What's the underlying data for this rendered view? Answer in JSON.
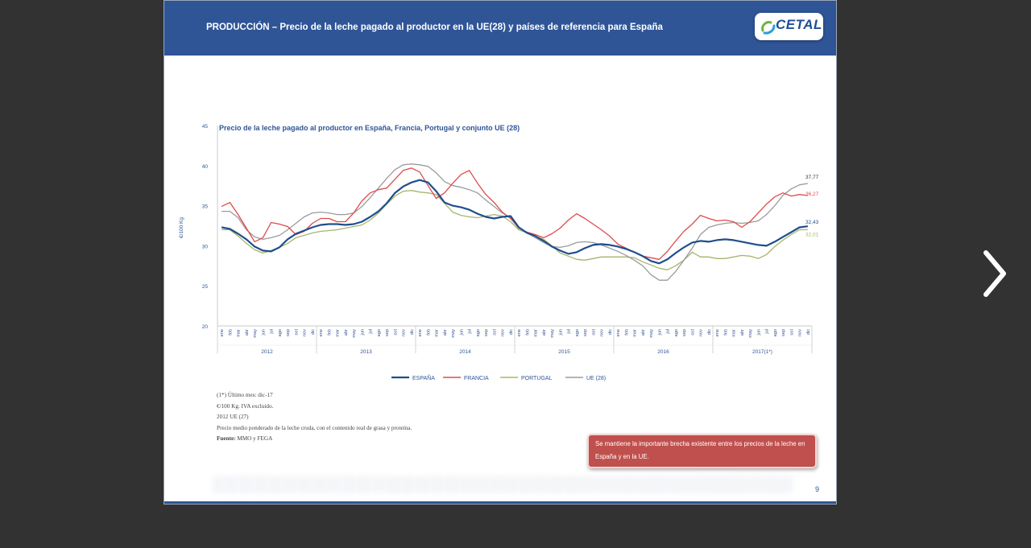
{
  "slide": {
    "title": "PRODUCCIÓN – Precio de la leche pagado al productor en la UE(28) y países de referencia para España",
    "logo_text": "CETAL",
    "page_number": "9"
  },
  "notes": {
    "line1": "(1*) Último mes: dic-17",
    "line2": "€/100 Kg. IVA excluido.",
    "line3": "2012 UE (27)",
    "line4": "Precio medio ponderado de la leche cruda, con el contenido real de grasa y proteína.",
    "source_label": "Fuente:",
    "source_value": " MMO y FEGA"
  },
  "callout": {
    "text": "Se mantiene la importante brecha existente entre los precios de la leche en España y en la UE."
  },
  "navigation": {
    "next_icon": "chevron-right-icon"
  },
  "chart_data": {
    "type": "line",
    "title": "Precio de la leche pagado al productor en España,  Francia, Portugal y conjunto  UE (28)",
    "ylabel": "€/100 Kg",
    "xlabel": "",
    "ylim": [
      20,
      45
    ],
    "yticks": [
      20,
      25,
      30,
      35,
      40,
      45
    ],
    "grid": false,
    "legend_position": "bottom",
    "month_labels": [
      "ene",
      "feb",
      "mar",
      "abr",
      "may",
      "jun",
      "jul",
      "ago",
      "sep",
      "oct",
      "nov",
      "dic"
    ],
    "year_labels": [
      "2012",
      "2013",
      "2014",
      "2015",
      "2016",
      "2017(1*)"
    ],
    "end_labels": {
      "ESPAÑA": "32,43",
      "FRANCIA": "36,27",
      "PORTUGAL": "32,01",
      "UE (28)": "37,77"
    },
    "series": [
      {
        "name": "ESPAÑA",
        "color": "#1f4e8c",
        "values": [
          32.3,
          32.1,
          31.5,
          30.8,
          29.9,
          29.4,
          29.3,
          29.8,
          30.8,
          31.5,
          31.9,
          32.3,
          32.6,
          32.7,
          32.7,
          32.6,
          32.7,
          33.0,
          33.6,
          34.3,
          35.3,
          36.6,
          37.4,
          37.9,
          38.2,
          37.9,
          36.8,
          35.4,
          35.0,
          34.8,
          34.5,
          34.0,
          33.6,
          33.4,
          33.6,
          33.7,
          32.3,
          31.6,
          31.2,
          30.6,
          29.9,
          29.4,
          29.0,
          29.2,
          29.7,
          30.1,
          30.2,
          30.1,
          29.9,
          29.6,
          29.2,
          28.7,
          28.1,
          27.8,
          28.3,
          29.1,
          29.8,
          30.4,
          30.6,
          30.5,
          30.7,
          30.8,
          30.7,
          30.5,
          30.3,
          30.1,
          30.0,
          30.5,
          31.1,
          31.7,
          32.3,
          32.43
        ]
      },
      {
        "name": "FRANCIA",
        "color": "#e04a4a",
        "values": [
          34.9,
          35.4,
          33.9,
          32.2,
          30.5,
          31.0,
          32.9,
          32.7,
          32.4,
          31.4,
          31.8,
          32.8,
          33.4,
          33.4,
          33.0,
          33.0,
          34.1,
          35.6,
          36.6,
          37.0,
          37.2,
          38.3,
          39.4,
          39.7,
          39.2,
          37.5,
          35.9,
          36.6,
          37.8,
          38.9,
          39.4,
          37.8,
          36.4,
          35.4,
          34.2,
          33.4,
          32.2,
          31.7,
          31.4,
          31.0,
          31.5,
          32.2,
          33.2,
          34.0,
          33.4,
          32.7,
          32.0,
          31.2,
          30.2,
          29.7,
          29.2,
          28.7,
          28.5,
          28.3,
          29.3,
          30.6,
          31.8,
          32.7,
          33.8,
          33.4,
          33.1,
          33.2,
          33.0,
          32.3,
          33.0,
          34.1,
          35.2,
          36.1,
          36.6,
          36.2,
          36.4,
          36.27
        ]
      },
      {
        "name": "PORTUGAL",
        "color": "#a5b56a",
        "values": [
          32.0,
          32.0,
          31.2,
          30.3,
          29.5,
          29.1,
          29.4,
          29.8,
          30.3,
          31.0,
          31.3,
          31.6,
          31.8,
          31.9,
          32.0,
          32.2,
          32.4,
          32.6,
          33.2,
          34.1,
          35.2,
          36.2,
          36.8,
          36.9,
          36.7,
          36.6,
          36.4,
          35.3,
          34.2,
          33.8,
          33.6,
          33.5,
          33.7,
          33.9,
          33.7,
          33.0,
          32.0,
          31.6,
          31.2,
          30.8,
          30.0,
          29.1,
          28.7,
          28.3,
          28.2,
          28.4,
          28.6,
          28.6,
          28.6,
          28.6,
          28.5,
          28.0,
          27.6,
          27.2,
          27.0,
          27.5,
          28.2,
          29.2,
          28.6,
          28.6,
          28.4,
          28.4,
          28.6,
          28.8,
          28.7,
          28.4,
          28.9,
          29.9,
          30.7,
          31.4,
          32.0,
          32.01
        ]
      },
      {
        "name": "UE (28)",
        "color": "#9b9b9b",
        "values": [
          34.3,
          34.3,
          33.5,
          32.0,
          31.1,
          30.8,
          31.0,
          31.3,
          32.0,
          32.8,
          33.6,
          34.1,
          34.2,
          34.1,
          33.9,
          33.9,
          34.1,
          34.9,
          36.0,
          37.2,
          38.4,
          39.5,
          40.1,
          40.2,
          40.1,
          39.9,
          39.1,
          38.0,
          37.5,
          37.3,
          37.0,
          36.6,
          35.7,
          34.9,
          34.1,
          33.5,
          32.3,
          31.6,
          31.0,
          30.4,
          29.9,
          29.8,
          30.0,
          30.4,
          30.5,
          30.4,
          30.1,
          29.7,
          29.3,
          28.8,
          28.2,
          27.5,
          26.4,
          25.7,
          25.7,
          26.8,
          28.2,
          29.7,
          31.4,
          32.3,
          32.6,
          32.8,
          32.9,
          32.8,
          32.9,
          33.1,
          33.9,
          35.0,
          36.3,
          37.1,
          37.6,
          37.77
        ]
      }
    ]
  }
}
